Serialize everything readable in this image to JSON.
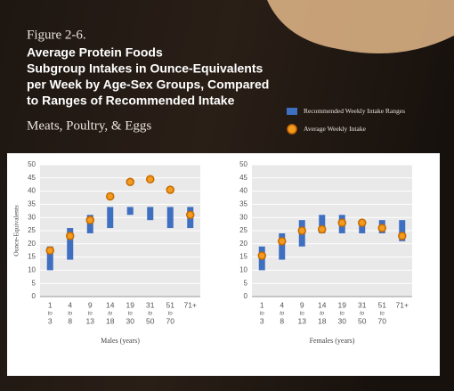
{
  "header": {
    "figure": "Figure 2-6.",
    "title": [
      "Average Protein Foods",
      "Subgroup Intakes in Ounce-Equivalents",
      "per Week by Age-Sex Groups, Compared",
      "to Ranges of Recommended Intake"
    ],
    "subtitle": "Meats, Poultry, & Eggs"
  },
  "chart_data": [
    {
      "type": "rangebar",
      "x_label": "Males (years)",
      "y_label": "Ounce-Equivalents",
      "categories": [
        [
          "1",
          "to",
          "3"
        ],
        [
          "4",
          "to",
          "8"
        ],
        [
          "9",
          "to",
          "13"
        ],
        [
          "14",
          "to",
          "18"
        ],
        [
          "19",
          "to",
          "30"
        ],
        [
          "31",
          "to",
          "50"
        ],
        [
          "51",
          "to",
          "70"
        ],
        [
          "71+"
        ]
      ],
      "series": [
        {
          "name": "Recommended Weekly Intake Ranges",
          "color": "#3f6fc1",
          "values": [
            [
              10,
              19
            ],
            [
              14,
              26
            ],
            [
              24,
              31
            ],
            [
              26,
              34
            ],
            [
              31,
              34
            ],
            [
              29,
              34
            ],
            [
              26,
              34
            ],
            [
              26,
              34
            ]
          ]
        },
        {
          "name": "Average Weekly Intake",
          "color": "#f39a1f",
          "values": [
            17.5,
            23,
            29,
            38,
            43.5,
            44.5,
            40.5,
            31
          ]
        }
      ],
      "ylim": [
        0,
        50
      ],
      "yticks": [
        0,
        5,
        10,
        15,
        20,
        25,
        30,
        35,
        40,
        45,
        50
      ],
      "grid": true
    },
    {
      "type": "rangebar",
      "x_label": "Females (years)",
      "categories": [
        [
          "1",
          "to",
          "3"
        ],
        [
          "4",
          "to",
          "8"
        ],
        [
          "9",
          "to",
          "13"
        ],
        [
          "14",
          "to",
          "18"
        ],
        [
          "19",
          "to",
          "30"
        ],
        [
          "31",
          "to",
          "50"
        ],
        [
          "51",
          "to",
          "70"
        ],
        [
          "71+"
        ]
      ],
      "series": [
        {
          "color": "#3f6fc1",
          "values": [
            [
              10,
              19
            ],
            [
              14,
              24
            ],
            [
              19,
              29
            ],
            [
              24,
              31
            ],
            [
              24,
              31
            ],
            [
              24,
              29
            ],
            [
              24,
              29
            ],
            [
              21,
              29
            ]
          ]
        },
        {
          "color": "#f39a1f",
          "values": [
            15.5,
            21,
            25,
            25.5,
            28,
            28,
            26,
            23
          ]
        }
      ],
      "ylim": [
        0,
        50
      ],
      "yticks": [
        0,
        5,
        10,
        15,
        20,
        25,
        30,
        35,
        40,
        45,
        50
      ],
      "grid": true
    }
  ]
}
